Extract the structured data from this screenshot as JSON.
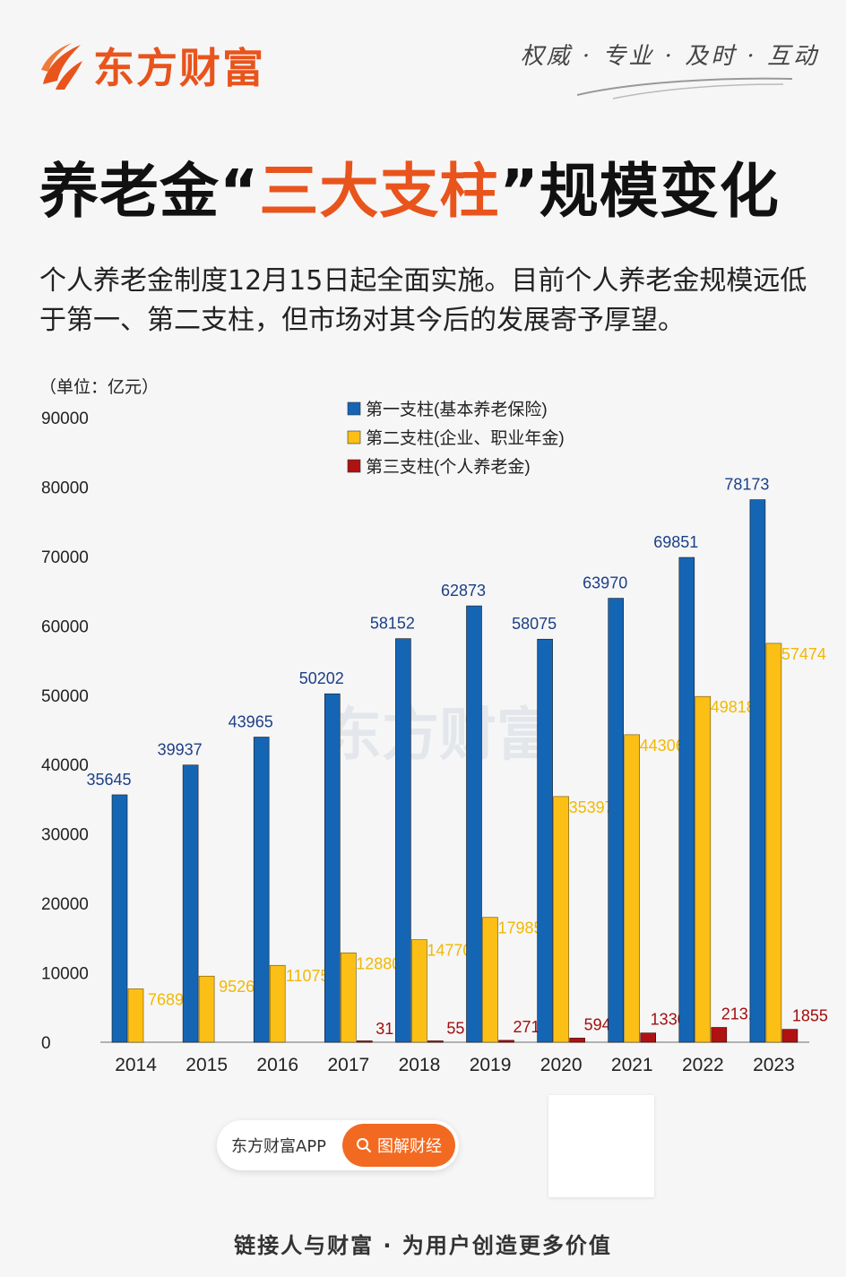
{
  "brand": {
    "name": "东方财富",
    "slogan": "权威 · 专业 · 及时 · 互动",
    "color": "#e8541c"
  },
  "headline": {
    "prefix": "养老金“",
    "highlight": "三大支柱",
    "suffix": "”规模变化"
  },
  "description": "个人养老金制度12月15日起全面实施。目前个人养老金规模远低于第一、第二支柱，但市场对其今后的发展寄予厚望。",
  "chart_data": {
    "type": "bar",
    "unit_label": "（单位：亿元）",
    "categories": [
      "2014",
      "2015",
      "2016",
      "2017",
      "2018",
      "2019",
      "2020",
      "2021",
      "2022",
      "2023"
    ],
    "series": [
      {
        "name": "第一支柱(基本养老保险)",
        "color": "#1565b5",
        "label_color": "#1c3f87",
        "values": [
          35645,
          39937,
          43965,
          50202,
          58152,
          62873,
          58075,
          63970,
          69851,
          78173
        ]
      },
      {
        "name": "第二支柱(企业、职业年金)",
        "color": "#fbbf16",
        "label_color": "#f2b800",
        "values": [
          7689,
          9526,
          11075,
          12880,
          14770,
          17985,
          35397,
          44306,
          49818,
          57474
        ]
      },
      {
        "name": "第三支柱(个人养老金)",
        "color": "#b01212",
        "label_color": "#a30d0d",
        "values": [
          null,
          null,
          null,
          31,
          55,
          271,
          594,
          1330,
          2131,
          1855
        ]
      }
    ],
    "ylim": [
      0,
      90000
    ],
    "yticks": [
      0,
      10000,
      20000,
      30000,
      40000,
      50000,
      60000,
      70000,
      80000,
      90000
    ],
    "legend_position": "top-center",
    "watermark": "东方财富"
  },
  "app": {
    "name": "东方财富APP",
    "button_label": "图解财经"
  },
  "footer": "链接人与财富 · 为用户创造更多价值"
}
